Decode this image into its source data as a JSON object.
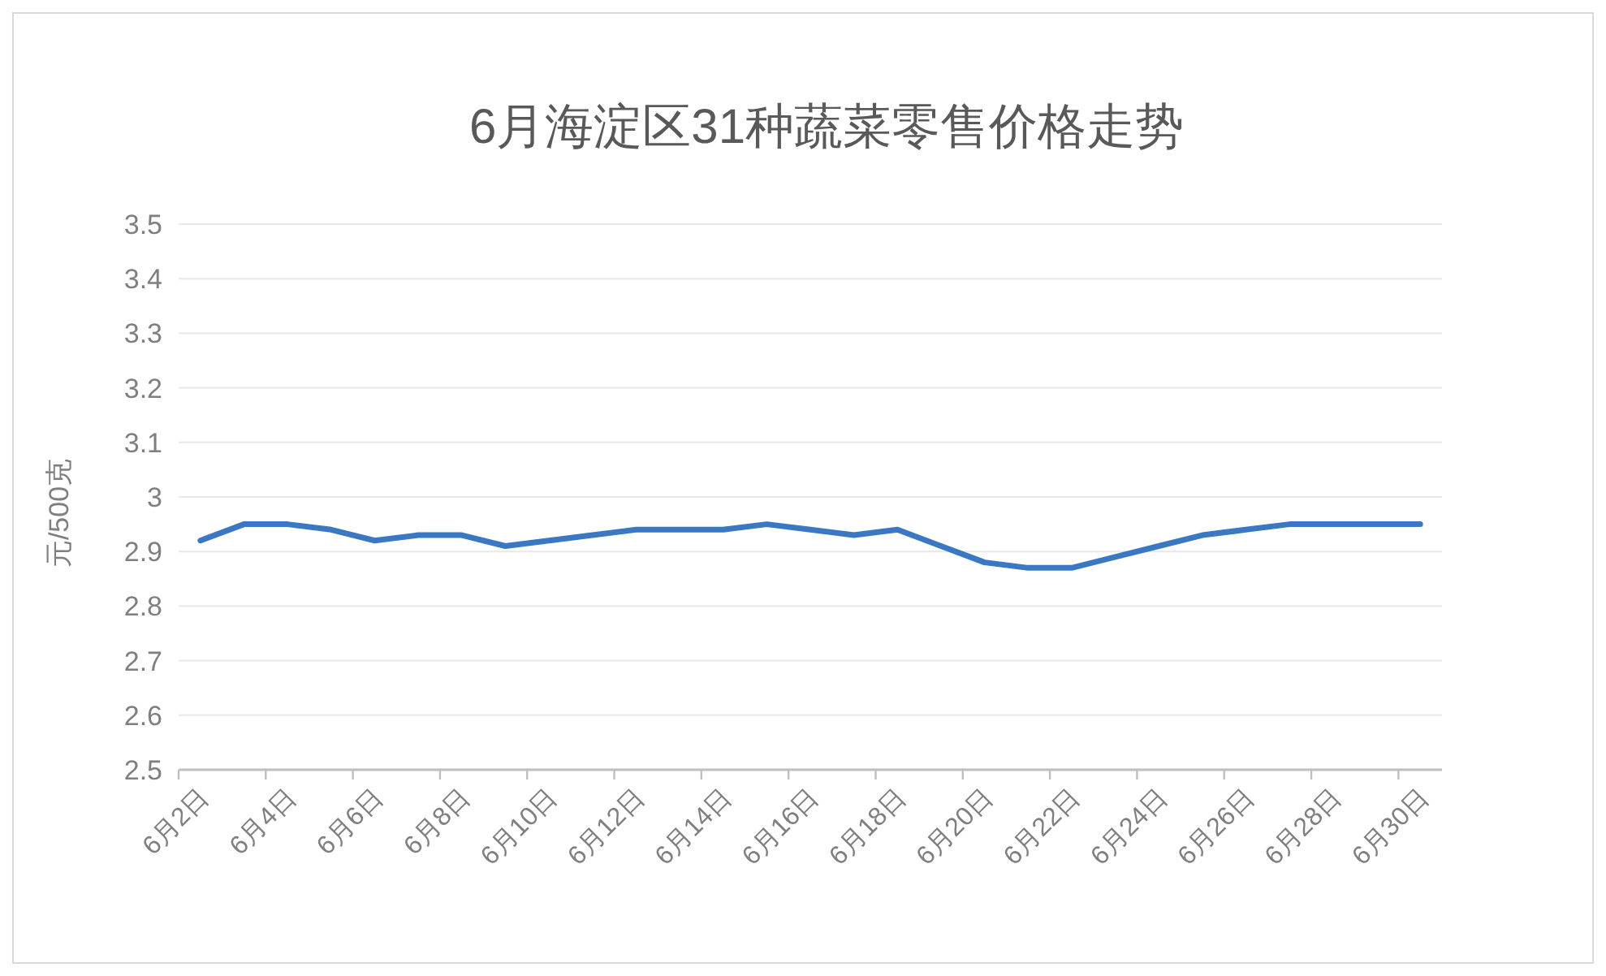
{
  "chart_data": {
    "type": "line",
    "title": "6月海淀区31种蔬菜零售价格走势",
    "ylabel": "元/500克",
    "categories": [
      "6月2日",
      null,
      "6月4日",
      null,
      "6月6日",
      null,
      "6月8日",
      null,
      "6月10日",
      null,
      "6月12日",
      null,
      "6月14日",
      null,
      "6月16日",
      null,
      "6月18日",
      null,
      "6月20日",
      null,
      "6月22日",
      null,
      "6月24日",
      null,
      "6月26日",
      null,
      "6月28日",
      null,
      "6月30日"
    ],
    "series": [
      {
        "color": "#3b78c4",
        "values": [
          2.92,
          2.95,
          2.95,
          2.94,
          2.92,
          2.93,
          2.93,
          2.91,
          2.92,
          2.93,
          2.94,
          2.94,
          2.94,
          2.95,
          2.94,
          2.93,
          2.94,
          2.91,
          2.88,
          2.87,
          2.87,
          2.89,
          2.91,
          2.93,
          2.94,
          2.95,
          2.95,
          2.95,
          2.95
        ]
      }
    ],
    "ylim": [
      2.5,
      3.5
    ],
    "yticks": [
      2.5,
      2.6,
      2.7,
      2.8,
      2.9,
      3,
      3.1,
      3.2,
      3.3,
      3.4,
      3.5
    ],
    "grid": "y"
  }
}
